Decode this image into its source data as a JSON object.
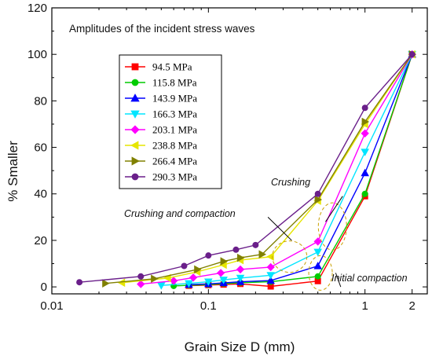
{
  "chart_data": {
    "type": "line",
    "title": "",
    "caption": "Amplitudes of the incident stress waves",
    "xlabel": "Grain Size D (mm)",
    "ylabel": "% Smaller",
    "x_scale": "log",
    "xlim": [
      0.01,
      2.5
    ],
    "ylim": [
      -3,
      120
    ],
    "x_ticks": [
      {
        "value": 0.01,
        "label": "0.01"
      },
      {
        "value": 0.1,
        "label": "0.1"
      },
      {
        "value": 1,
        "label": "1"
      },
      {
        "value": 2,
        "label": "2"
      }
    ],
    "y_ticks": [
      0,
      20,
      40,
      60,
      80,
      100,
      120
    ],
    "grid": false,
    "legend_position": "upper-left",
    "series": [
      {
        "name": "94.5   MPa",
        "color": "#ff0000",
        "marker": "square",
        "points": [
          [
            0.075,
            0.5
          ],
          [
            0.1,
            0.8
          ],
          [
            0.125,
            1.0
          ],
          [
            0.16,
            1.3
          ],
          [
            0.25,
            0.2
          ],
          [
            0.5,
            2.5
          ],
          [
            1,
            39
          ],
          [
            2,
            100
          ]
        ]
      },
      {
        "name": "115.8 MPa",
        "color": "#00cc00",
        "marker": "circle",
        "points": [
          [
            0.06,
            0.4
          ],
          [
            0.075,
            0.7
          ],
          [
            0.1,
            1.0
          ],
          [
            0.125,
            1.4
          ],
          [
            0.16,
            1.8
          ],
          [
            0.25,
            2.2
          ],
          [
            0.5,
            4.5
          ],
          [
            1,
            40
          ],
          [
            2,
            100
          ]
        ]
      },
      {
        "name": "143.9 MPa",
        "color": "#0000ff",
        "marker": "triangle-up",
        "points": [
          [
            0.075,
            1.0
          ],
          [
            0.1,
            1.3
          ],
          [
            0.125,
            1.7
          ],
          [
            0.16,
            2.2
          ],
          [
            0.25,
            2.7
          ],
          [
            0.5,
            9
          ],
          [
            1,
            49
          ],
          [
            2,
            100
          ]
        ]
      },
      {
        "name": "166.3 MPa",
        "color": "#00e5ff",
        "marker": "triangle-down",
        "points": [
          [
            0.05,
            0.6
          ],
          [
            0.075,
            1.5
          ],
          [
            0.1,
            2.2
          ],
          [
            0.125,
            3.0
          ],
          [
            0.16,
            3.8
          ],
          [
            0.25,
            5
          ],
          [
            0.5,
            15
          ],
          [
            1,
            58
          ],
          [
            2,
            100
          ]
        ]
      },
      {
        "name": "203.1 MPa",
        "color": "#ff00ff",
        "marker": "diamond",
        "points": [
          [
            0.037,
            1.2
          ],
          [
            0.06,
            2.6
          ],
          [
            0.08,
            4
          ],
          [
            0.12,
            6
          ],
          [
            0.16,
            7.5
          ],
          [
            0.25,
            8.5
          ],
          [
            0.5,
            19.5
          ],
          [
            1,
            66
          ],
          [
            2,
            100
          ]
        ]
      },
      {
        "name": "238.8 MPa",
        "color": "#e6e600",
        "marker": "triangle-left",
        "points": [
          [
            0.028,
            1.8
          ],
          [
            0.055,
            3.8
          ],
          [
            0.085,
            6.5
          ],
          [
            0.125,
            9.5
          ],
          [
            0.16,
            11.5
          ],
          [
            0.25,
            13
          ],
          [
            0.5,
            37
          ],
          [
            1,
            70
          ],
          [
            2,
            100
          ]
        ]
      },
      {
        "name": "266.4 MPa",
        "color": "#808000",
        "marker": "triangle-right",
        "points": [
          [
            0.022,
            1.5
          ],
          [
            0.045,
            3.5
          ],
          [
            0.085,
            7.5
          ],
          [
            0.125,
            11
          ],
          [
            0.16,
            12.5
          ],
          [
            0.22,
            14
          ],
          [
            0.5,
            37.5
          ],
          [
            1,
            71
          ],
          [
            2,
            100
          ]
        ]
      },
      {
        "name": "290.3 MPa",
        "color": "#6a1f8a",
        "marker": "circle",
        "points": [
          [
            0.015,
            2
          ],
          [
            0.037,
            4.5
          ],
          [
            0.07,
            9
          ],
          [
            0.1,
            13.5
          ],
          [
            0.15,
            16
          ],
          [
            0.2,
            18
          ],
          [
            0.5,
            40
          ],
          [
            1,
            77
          ],
          [
            2,
            100
          ]
        ]
      }
    ],
    "annotations": [
      {
        "text": "Crushing",
        "x": 0.95,
        "y": 45
      },
      {
        "text": "Crushing and compaction",
        "x": 0.14,
        "y": 31
      },
      {
        "text": "Initial compaction",
        "x": 0.5,
        "y": 2
      }
    ]
  }
}
